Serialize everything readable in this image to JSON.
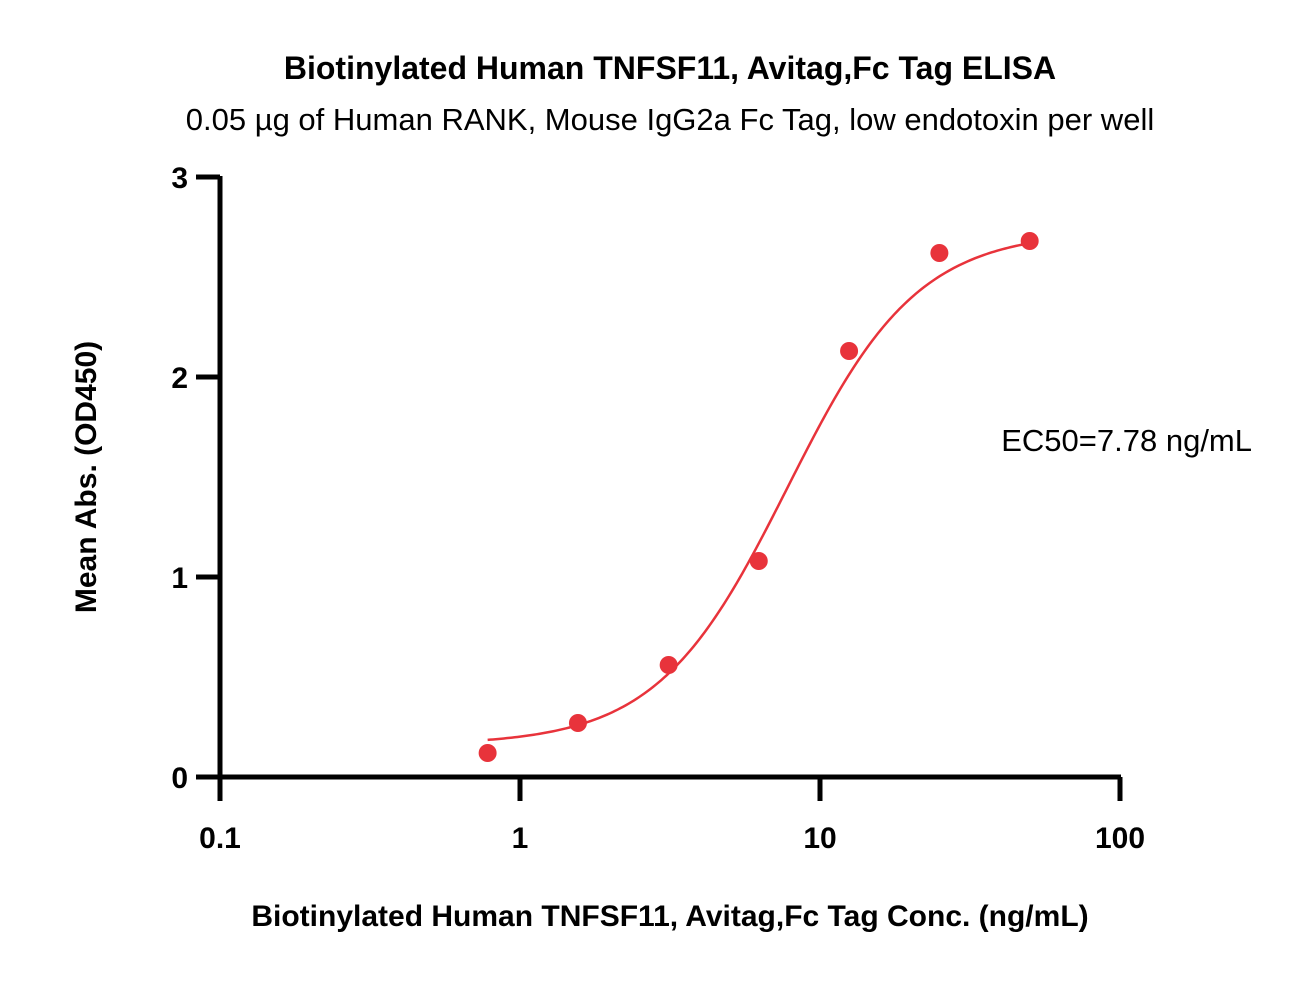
{
  "chart_data": {
    "type": "scatter",
    "title": "Biotinylated Human TNFSF11, Avitag,Fc Tag ELISA",
    "subtitle": "0.05 µg of Human RANK, Mouse IgG2a Fc Tag, low endotoxin per well",
    "xlabel": "Biotinylated Human TNFSF11, Avitag,Fc Tag Conc. (ng/mL)",
    "ylabel": "Mean Abs. (OD450)",
    "x_scale": "log",
    "xlim": [
      0.1,
      100
    ],
    "ylim": [
      0,
      3
    ],
    "x_ticks": [
      0.1,
      1,
      10,
      100
    ],
    "x_tick_labels": [
      "0.1",
      "1",
      "10",
      "100"
    ],
    "y_ticks": [
      0,
      1,
      2,
      3
    ],
    "y_tick_labels": [
      "0",
      "1",
      "2",
      "3"
    ],
    "grid": false,
    "series": [
      {
        "x": [
          0.78,
          1.56,
          3.13,
          6.25,
          12.5,
          25,
          50
        ],
        "y": [
          0.12,
          0.27,
          0.56,
          1.08,
          2.13,
          2.62,
          2.68
        ],
        "color": "#e8333b"
      }
    ],
    "fit": {
      "type": "4PL",
      "bottom": 0.16,
      "top": 2.73,
      "ec50": 7.78,
      "hill": 2.0,
      "color": "#e8333b"
    },
    "annotation": "EC50=7.78 ng/mL"
  }
}
